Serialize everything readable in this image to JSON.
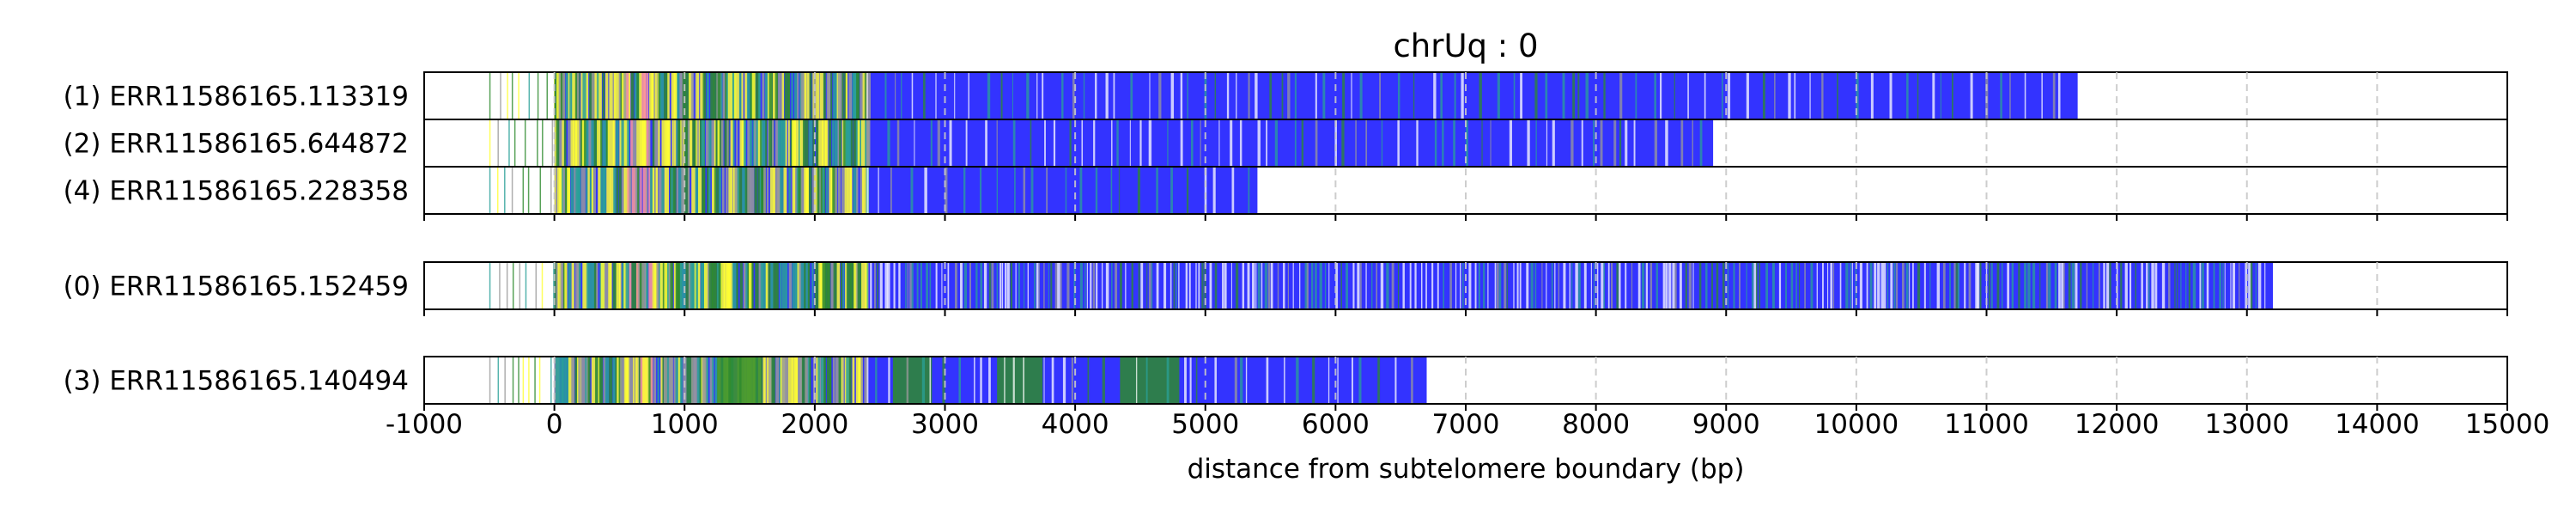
{
  "chart_data": {
    "type": "track",
    "title": "chrUq : 0",
    "xlabel": "distance from subtelomere boundary (bp)",
    "xlim": [
      -1000,
      15000
    ],
    "xticks": [
      -1000,
      0,
      1000,
      2000,
      3000,
      4000,
      5000,
      6000,
      7000,
      8000,
      9000,
      10000,
      11000,
      12000,
      13000,
      14000,
      15000
    ],
    "tick_labels": [
      "-1000",
      "0",
      "1000",
      "2000",
      "3000",
      "4000",
      "5000",
      "6000",
      "7000",
      "8000",
      "9000",
      "10000",
      "11000",
      "12000",
      "13000",
      "14000",
      "15000"
    ],
    "grid": "vertical dashed",
    "groups": [
      [
        {
          "label": "(1) ERR11586165.113319",
          "start": -500,
          "end": 11700,
          "green_blocks": []
        },
        {
          "label": "(2) ERR11586165.644872",
          "start": -500,
          "end": 8900,
          "green_blocks": []
        },
        {
          "label": "(4) ERR11586165.228358",
          "start": -500,
          "end": 5400,
          "green_blocks": []
        }
      ],
      [
        {
          "label": "(0) ERR11586165.152459",
          "start": -500,
          "end": 13200,
          "green_blocks": []
        }
      ],
      [
        {
          "label": "(3) ERR11586165.140494",
          "start": -500,
          "end": 6700,
          "green_blocks": [
            [
              1250,
              1600
            ],
            [
              2600,
              2900
            ],
            [
              3400,
              3750
            ],
            [
              4350,
              4800
            ]
          ]
        }
      ]
    ],
    "colors": {
      "telomeric_repeat": "#3333ff",
      "variant_green": "#2e8b2e",
      "variant_yellow": "#ffff33",
      "variant_gray": "#9a9a9a",
      "variant_teal": "#2aa198",
      "variant_pink": "#ff9999",
      "grid": "#c8c8c8"
    }
  }
}
